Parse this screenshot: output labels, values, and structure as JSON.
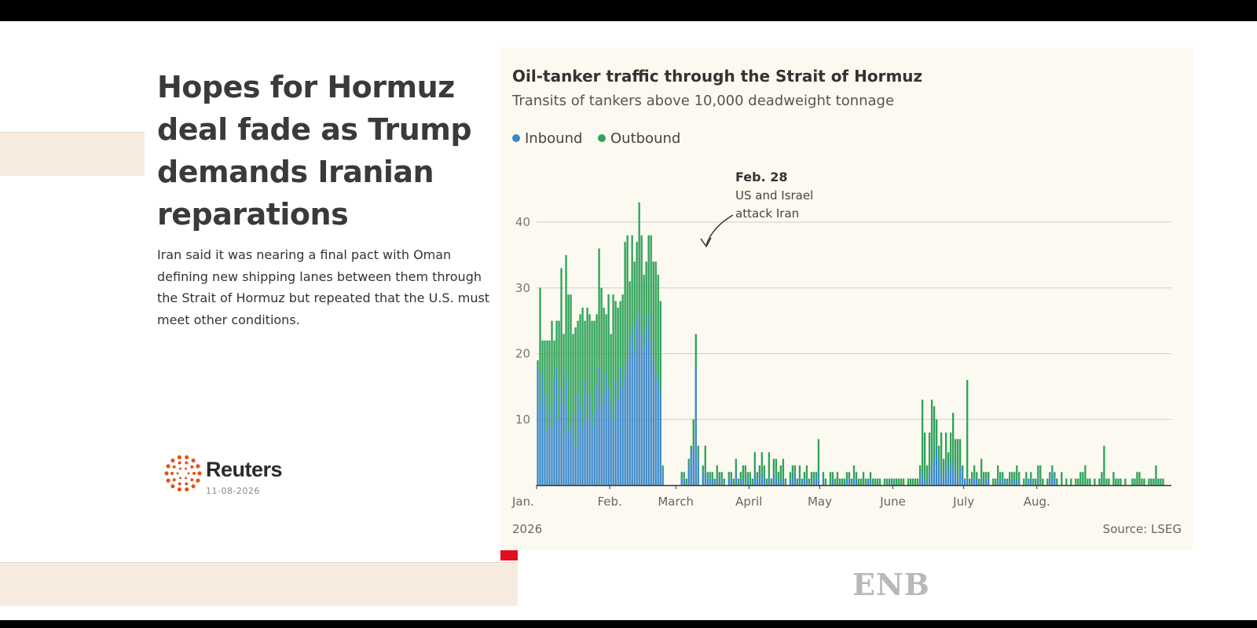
{
  "article": {
    "headline": "Hopes for Hormuz deal fade as Trump demands Iranian reparations",
    "summary": "Iran said it was nearing a final pact with Oman defining new shipping lanes between them through the Strait of Hormuz but repeated that the U.S. must meet other conditions."
  },
  "source_brand": {
    "name": "Reuters",
    "date": "11-08-2026"
  },
  "watermark": "ENB",
  "colors": {
    "inbound": "#3a87c8",
    "outbound": "#2fa35a",
    "panel_bg": "#fcf9f0",
    "accent_red": "#e3101c",
    "logo_orange": "#e0541a"
  },
  "chart_data": {
    "type": "bar",
    "stacked": true,
    "title": "Oil-tanker traffic through the Strait of Hormuz",
    "subtitle": "Transits of tankers above 10,000 deadweight tonnage",
    "legend": [
      "Inbound",
      "Outbound"
    ],
    "legend_position": "top-left",
    "grid": true,
    "ylim": [
      0,
      48
    ],
    "y_ticks": [
      10,
      20,
      30,
      40
    ],
    "x_ticks": [
      {
        "label": "Jan.",
        "date": "2026-01-01"
      },
      {
        "label": "Feb.",
        "date": "2026-02-01"
      },
      {
        "label": "March",
        "date": "2026-03-01"
      },
      {
        "label": "April",
        "date": "2026-04-01"
      },
      {
        "label": "May",
        "date": "2026-05-01"
      },
      {
        "label": "June",
        "date": "2026-06-01"
      },
      {
        "label": "July",
        "date": "2026-07-01"
      },
      {
        "label": "Aug.",
        "date": "2026-08-01"
      }
    ],
    "x_year_label": "2026",
    "x_start": "2026-01-01",
    "x_end": "2026-08-11",
    "annotation": {
      "date": "2026-02-28",
      "label": "Feb. 28",
      "text": "US and Israel attack Iran"
    },
    "source": "Source: LSEG",
    "series": [
      {
        "name": "Inbound",
        "values": [
          18,
          12,
          17,
          14,
          8,
          12,
          9,
          16,
          18,
          10,
          15,
          12,
          17,
          8,
          9,
          11,
          6,
          14,
          12,
          9,
          16,
          10,
          14,
          9,
          11,
          15,
          18,
          12,
          14,
          17,
          15,
          12,
          10,
          16,
          13,
          18,
          15,
          17,
          19,
          22,
          24,
          20,
          25,
          26,
          23,
          21,
          24,
          26,
          22,
          19,
          17,
          16,
          14,
          2,
          0,
          0,
          0,
          0,
          0,
          0,
          0,
          1,
          1,
          0,
          3,
          5,
          6,
          18,
          4,
          0,
          2,
          2,
          1,
          1,
          1,
          0,
          1,
          0,
          1,
          0,
          0,
          1,
          1,
          0,
          2,
          0,
          1,
          1,
          0,
          1,
          0,
          0,
          2,
          1,
          1,
          2,
          1,
          0,
          1,
          0,
          2,
          1,
          0,
          1,
          1,
          0,
          0,
          1,
          1,
          2,
          0,
          1,
          0,
          1,
          1,
          0,
          0,
          1,
          1,
          2,
          0,
          1,
          0,
          0,
          0,
          1,
          0,
          0,
          0,
          0,
          0,
          1,
          1,
          0,
          1,
          1,
          0,
          0,
          0,
          0,
          1,
          1,
          0,
          0,
          0,
          0,
          0,
          0,
          0,
          0,
          1,
          0,
          0,
          0,
          0,
          0,
          0,
          0,
          0,
          0,
          0,
          0,
          1,
          2,
          1,
          0,
          2,
          3,
          4,
          6,
          4,
          2,
          1,
          3,
          2,
          4,
          3,
          2,
          1,
          3,
          2,
          1,
          1,
          0,
          1,
          1,
          1,
          0,
          1,
          0,
          1,
          1,
          0,
          0,
          0,
          1,
          0,
          1,
          1,
          0,
          0,
          1,
          1,
          0,
          1,
          0,
          0,
          0,
          1,
          1,
          0,
          0,
          1,
          0,
          0,
          0,
          0,
          1,
          2,
          1,
          0,
          0,
          0,
          0,
          0,
          0,
          0,
          0,
          0,
          0,
          0,
          0,
          0,
          0,
          0,
          0,
          0,
          0,
          0,
          0,
          0,
          0,
          0,
          0,
          0,
          0,
          0,
          0,
          0,
          0,
          0,
          0,
          0,
          0,
          0,
          0,
          0,
          0,
          0,
          0,
          0,
          0,
          0,
          0,
          0,
          0,
          0,
          0,
          0
        ]
      },
      {
        "name": "Outbound",
        "values": [
          1,
          18,
          5,
          8,
          14,
          10,
          16,
          6,
          7,
          15,
          18,
          11,
          18,
          21,
          20,
          12,
          18,
          11,
          14,
          18,
          9,
          17,
          12,
          16,
          14,
          11,
          18,
          18,
          13,
          9,
          14,
          11,
          19,
          12,
          14,
          10,
          14,
          20,
          19,
          9,
          14,
          14,
          12,
          17,
          15,
          11,
          10,
          12,
          16,
          15,
          17,
          16,
          14,
          1,
          0,
          0,
          0,
          0,
          0,
          0,
          0,
          1,
          1,
          1,
          1,
          1,
          4,
          5,
          2,
          0,
          1,
          4,
          1,
          1,
          1,
          1,
          2,
          2,
          1,
          1,
          0,
          1,
          1,
          1,
          2,
          1,
          1,
          2,
          3,
          1,
          2,
          1,
          3,
          1,
          2,
          3,
          2,
          1,
          4,
          1,
          2,
          3,
          2,
          2,
          3,
          1,
          0,
          1,
          2,
          1,
          1,
          2,
          1,
          1,
          2,
          1,
          2,
          1,
          1,
          5,
          0,
          1,
          1,
          0,
          2,
          1,
          1,
          2,
          1,
          1,
          1,
          1,
          1,
          1,
          2,
          1,
          1,
          1,
          2,
          1,
          0,
          1,
          1,
          1,
          1,
          1,
          0,
          1,
          1,
          1,
          0,
          1,
          1,
          1,
          1,
          1,
          0,
          1,
          1,
          1,
          1,
          1,
          2,
          11,
          7,
          3,
          6,
          10,
          8,
          4,
          2,
          6,
          3,
          5,
          3,
          4,
          8,
          5,
          6,
          4,
          1,
          0,
          15,
          1,
          1,
          2,
          1,
          1,
          3,
          2,
          1,
          1,
          0,
          1,
          1,
          2,
          2,
          1,
          0,
          1,
          2,
          1,
          1,
          3,
          1,
          0,
          1,
          2,
          0,
          1,
          1,
          1,
          2,
          3,
          1,
          0,
          1,
          1,
          1,
          1,
          1,
          0,
          2,
          0,
          1,
          0,
          1,
          0,
          1,
          1,
          2,
          2,
          3,
          1,
          1,
          0,
          1,
          0,
          1,
          2,
          6,
          1,
          1,
          0,
          2,
          1,
          1,
          1,
          0,
          1,
          0,
          0,
          1,
          1,
          2,
          2,
          1,
          1,
          0,
          1,
          1,
          1,
          3,
          1,
          1,
          1
        ]
      }
    ]
  }
}
